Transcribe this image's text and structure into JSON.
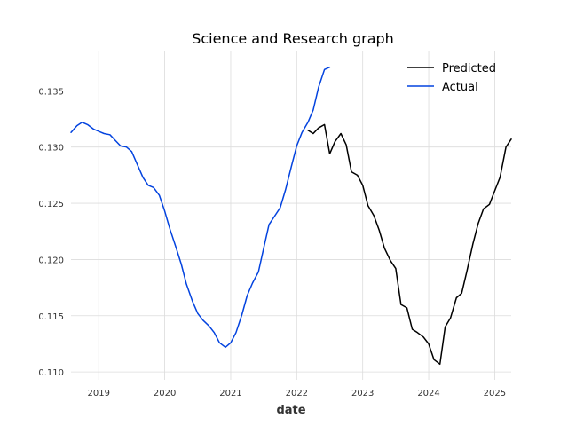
{
  "chart_data": {
    "type": "line",
    "title": "Science and Research graph",
    "xlabel": "date",
    "ylabel": "",
    "xlim": [
      2018.58,
      2025.25
    ],
    "ylim": [
      0.1093,
      0.1385
    ],
    "x_ticks": [
      2019,
      2020,
      2021,
      2022,
      2023,
      2024,
      2025
    ],
    "x_tick_labels": [
      "2019",
      "2020",
      "2021",
      "2022",
      "2023",
      "2024",
      "2025"
    ],
    "y_ticks": [
      0.11,
      0.115,
      0.12,
      0.125,
      0.13,
      0.135
    ],
    "y_tick_labels": [
      "0.110",
      "0.115",
      "0.120",
      "0.125",
      "0.130",
      "0.135"
    ],
    "grid": true,
    "legend_position": "top-right",
    "series": [
      {
        "name": "Predicted",
        "color": "#000000",
        "x": [
          2022.17,
          2022.25,
          2022.33,
          2022.42,
          2022.5,
          2022.58,
          2022.67,
          2022.75,
          2022.83,
          2022.92,
          2023.0,
          2023.08,
          2023.17,
          2023.25,
          2023.33,
          2023.42,
          2023.5,
          2023.58,
          2023.67,
          2023.75,
          2023.83,
          2023.92,
          2024.0,
          2024.08,
          2024.17,
          2024.25,
          2024.33,
          2024.42,
          2024.5,
          2024.58,
          2024.67,
          2024.75,
          2024.83,
          2024.92,
          2025.0,
          2025.08,
          2025.17,
          2025.25
        ],
        "values": [
          0.1315,
          0.1312,
          0.1317,
          0.132,
          0.1294,
          0.1305,
          0.1312,
          0.1302,
          0.1278,
          0.1275,
          0.1266,
          0.1248,
          0.1239,
          0.1226,
          0.121,
          0.1199,
          0.1192,
          0.116,
          0.1157,
          0.1138,
          0.1135,
          0.1131,
          0.1125,
          0.1111,
          0.1107,
          0.114,
          0.1148,
          0.1166,
          0.117,
          0.119,
          0.1214,
          0.1232,
          0.1245,
          0.1249,
          0.1261,
          0.1273,
          0.13,
          0.1307
        ]
      },
      {
        "name": "Actual",
        "color": "#0343df",
        "x": [
          2018.58,
          2018.67,
          2018.75,
          2018.83,
          2018.92,
          2019.0,
          2019.08,
          2019.17,
          2019.25,
          2019.33,
          2019.42,
          2019.5,
          2019.58,
          2019.67,
          2019.75,
          2019.83,
          2019.92,
          2020.0,
          2020.08,
          2020.17,
          2020.25,
          2020.33,
          2020.42,
          2020.5,
          2020.58,
          2020.67,
          2020.75,
          2020.83,
          2020.92,
          2021.0,
          2021.08,
          2021.17,
          2021.25,
          2021.33,
          2021.42,
          2021.5,
          2021.58,
          2021.67,
          2021.75,
          2021.83,
          2021.92,
          2022.0,
          2022.08,
          2022.17,
          2022.25,
          2022.33,
          2022.42,
          2022.5
        ],
        "values": [
          0.1313,
          0.1319,
          0.1322,
          0.132,
          0.1316,
          0.1314,
          0.1312,
          0.1311,
          0.1306,
          0.1301,
          0.13,
          0.1296,
          0.1285,
          0.1273,
          0.1266,
          0.1264,
          0.1257,
          0.1243,
          0.1227,
          0.1211,
          0.1196,
          0.1178,
          0.1163,
          0.1152,
          0.1146,
          0.1141,
          0.1135,
          0.1126,
          0.1122,
          0.1126,
          0.1135,
          0.1151,
          0.1168,
          0.1179,
          0.1189,
          0.121,
          0.1231,
          0.1239,
          0.1246,
          0.1262,
          0.1283,
          0.1301,
          0.1313,
          0.1322,
          0.1333,
          0.1353,
          0.1369,
          0.1371
        ]
      }
    ]
  }
}
